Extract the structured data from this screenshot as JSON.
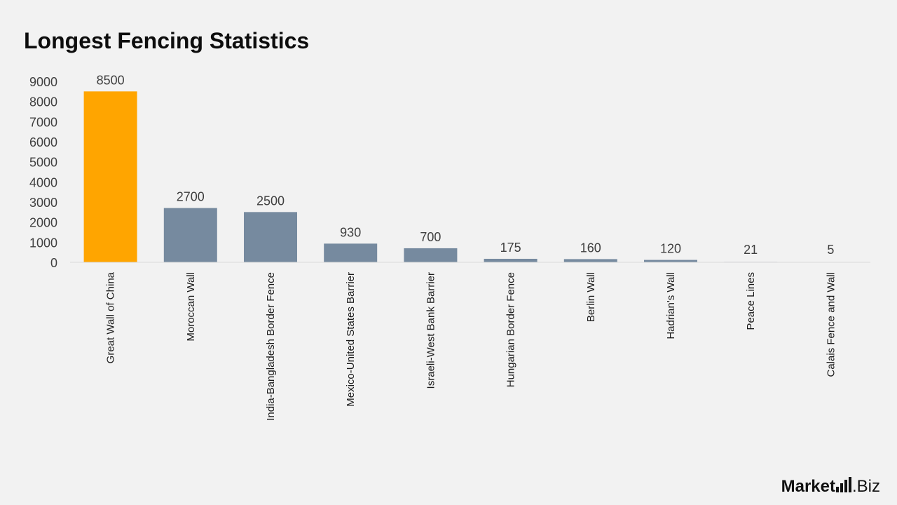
{
  "title": "Longest Fencing Statistics",
  "chart_data": {
    "type": "bar",
    "categories": [
      "Great Wall of China",
      "Moroccan Wall",
      "India-Bangladesh Border Fence",
      "Mexico-United States Barrier",
      "Israeli-West Bank Barrier",
      "Hungarian Border Fence",
      "Berlin Wall",
      "Hadrian's Wall",
      "Peace Lines",
      "Calais Fence and Wall"
    ],
    "values": [
      8500,
      2700,
      2500,
      930,
      700,
      175,
      160,
      120,
      21,
      5
    ],
    "data_labels": [
      "8500",
      "2700",
      "2500",
      "930",
      "700",
      "175",
      "160",
      "120",
      "21",
      "5"
    ],
    "ylim": [
      0,
      9000
    ],
    "yticks": [
      "0",
      "1000",
      "2000",
      "3000",
      "4000",
      "5000",
      "6000",
      "7000",
      "8000",
      "9000"
    ],
    "ytick_values": [
      0,
      1000,
      2000,
      3000,
      4000,
      5000,
      6000,
      7000,
      8000,
      9000
    ],
    "grid": false,
    "legend": "none",
    "colors": {
      "highlight": "#ffa500",
      "bar": "#768a9f",
      "axis": "#d9d9d9"
    },
    "highlight_index": 0
  },
  "logo": {
    "brand": "Market",
    "suffix": ".Biz"
  }
}
